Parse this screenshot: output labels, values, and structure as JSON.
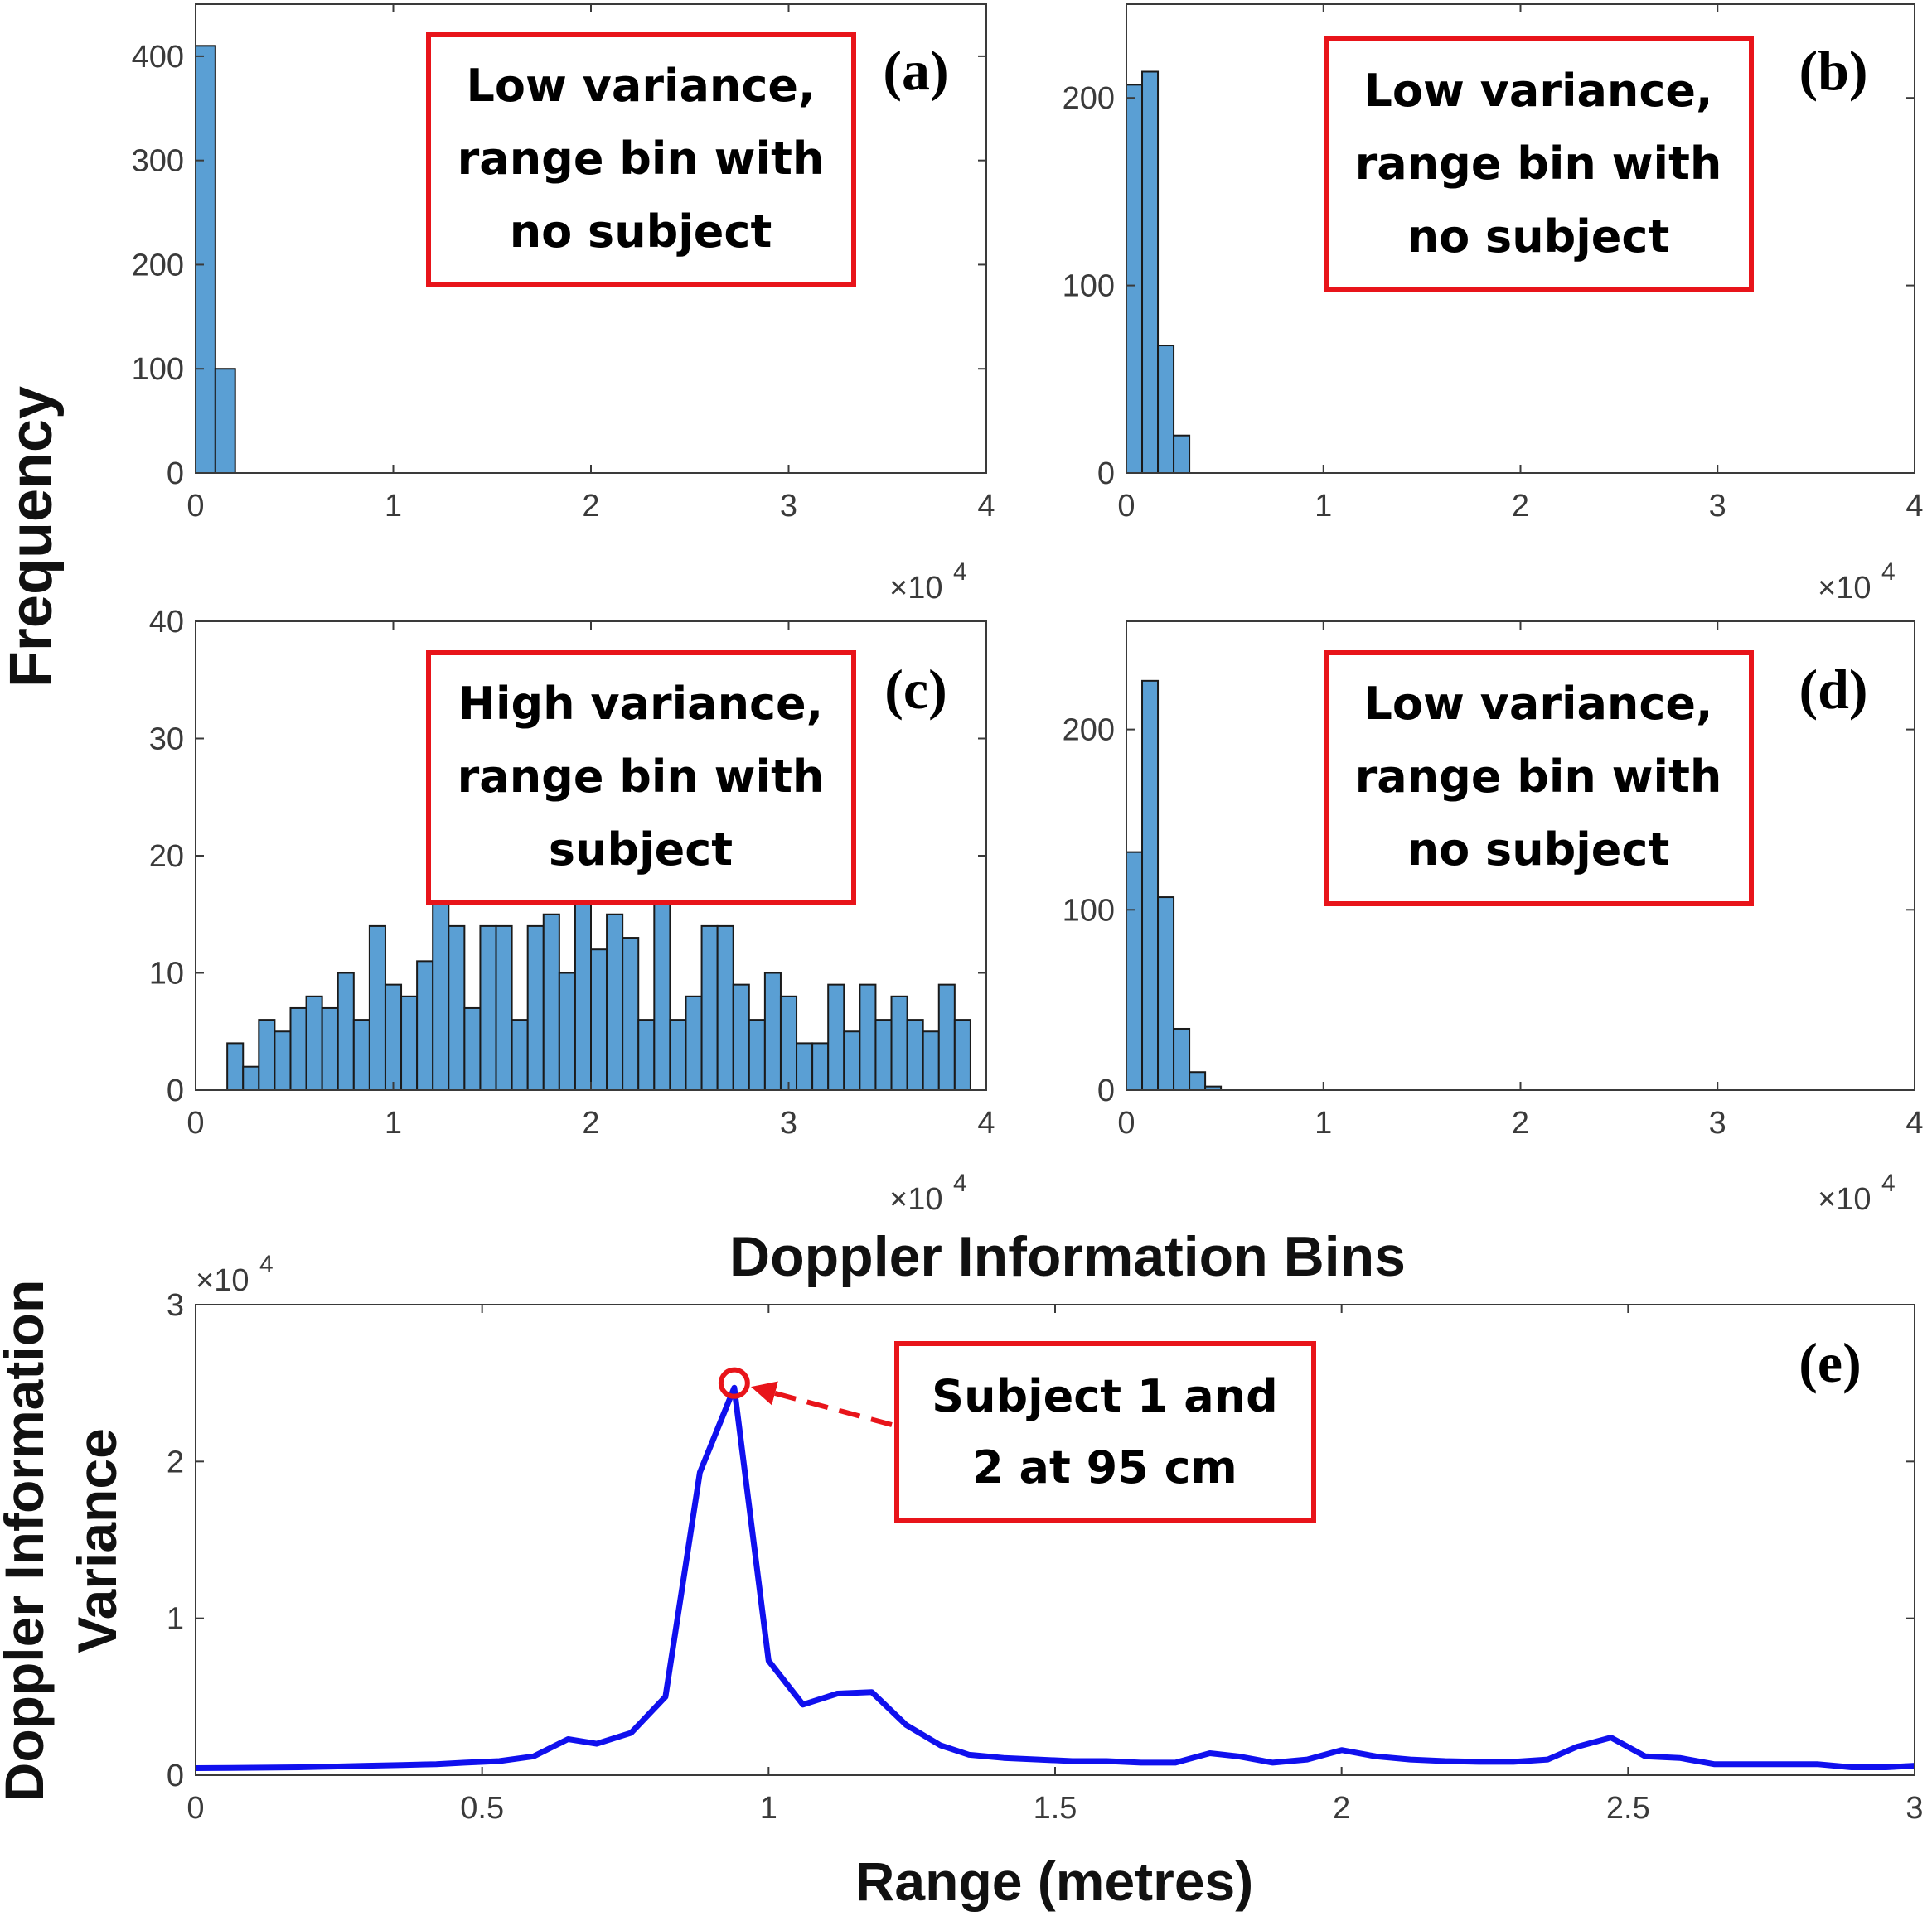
{
  "colors": {
    "bar_fill": "#5a9fd4",
    "bar_edge": "#1a1a1a",
    "line": "#1010ee",
    "annotation": "#e8141a",
    "axis": "#3a3a3a"
  },
  "shared_labels": {
    "frequency_label": "Frequency",
    "doppler_bins_label": "Doppler Information Bins"
  },
  "chart_data": [
    {
      "id": "a",
      "type": "bar",
      "panel_label": "(a)",
      "annotation": [
        "Low variance,",
        "range bin with",
        "no subject"
      ],
      "xlim": [
        0,
        4
      ],
      "ylim": [
        0,
        450
      ],
      "x_scale_base": "×10",
      "x_scale_exp": "4",
      "xticks": [
        "0",
        "1",
        "2",
        "3",
        "4"
      ],
      "yticks": [
        "0",
        "100",
        "200",
        "300",
        "400"
      ],
      "ytick_values": [
        0,
        100,
        200,
        300,
        400
      ],
      "bin_width": 0.1,
      "bin_start": 0,
      "counts": [
        410,
        100
      ]
    },
    {
      "id": "b",
      "type": "bar",
      "panel_label": "(b)",
      "annotation": [
        "Low variance,",
        "range bin with",
        "no subject"
      ],
      "xlim": [
        0,
        4
      ],
      "ylim": [
        0,
        250
      ],
      "x_scale_base": "×10",
      "x_scale_exp": "4",
      "xticks": [
        "0",
        "1",
        "2",
        "3",
        "4"
      ],
      "yticks": [
        "0",
        "100",
        "200"
      ],
      "ytick_values": [
        0,
        100,
        200
      ],
      "bin_width": 0.08,
      "bin_start": 0,
      "counts": [
        207,
        214,
        68,
        20
      ]
    },
    {
      "id": "c",
      "type": "bar",
      "panel_label": "(c)",
      "annotation": [
        "High variance,",
        "range bin with",
        "subject"
      ],
      "xlim": [
        0,
        4
      ],
      "ylim": [
        0,
        40
      ],
      "x_scale_base": "×10",
      "x_scale_exp": "4",
      "xticks": [
        "0",
        "1",
        "2",
        "3",
        "4"
      ],
      "yticks": [
        "0",
        "10",
        "20",
        "30",
        "40"
      ],
      "ytick_values": [
        0,
        10,
        20,
        30,
        40
      ],
      "bin_width": 0.08,
      "bin_start": 0.16,
      "counts": [
        4,
        2,
        6,
        5,
        7,
        8,
        7,
        10,
        6,
        14,
        9,
        8,
        11,
        17,
        14,
        7,
        14,
        14,
        6,
        14,
        15,
        10,
        17,
        12,
        15,
        13,
        6,
        17,
        6,
        8,
        14,
        14,
        9,
        6,
        10,
        8,
        4,
        4,
        9,
        5,
        9,
        6,
        8,
        6,
        5,
        9,
        6
      ]
    },
    {
      "id": "d",
      "type": "bar",
      "panel_label": "(d)",
      "annotation": [
        "Low variance,",
        "range bin with",
        "no subject"
      ],
      "xlim": [
        0,
        4
      ],
      "ylim": [
        0,
        260
      ],
      "x_scale_base": "×10",
      "x_scale_exp": "4",
      "xticks": [
        "0",
        "1",
        "2",
        "3",
        "4"
      ],
      "yticks": [
        "0",
        "100",
        "200"
      ],
      "ytick_values": [
        0,
        100,
        200
      ],
      "bin_width": 0.08,
      "bin_start": 0,
      "counts": [
        132,
        227,
        107,
        34,
        10,
        2
      ]
    },
    {
      "id": "e",
      "type": "line",
      "panel_label": "(e)",
      "annotation": [
        "Subject 1 and",
        "2 at 95 cm"
      ],
      "xlabel": "Range (metres)",
      "ylabel": [
        "Doppler Information",
        "Variance"
      ],
      "xlim": [
        0,
        3
      ],
      "ylim": [
        0,
        3
      ],
      "y_scale_base": "×10",
      "y_scale_exp": "4",
      "xticks": [
        "0",
        "0.5",
        "1",
        "1.5",
        "2",
        "2.5",
        "3"
      ],
      "xtick_values": [
        0,
        0.5,
        1,
        1.5,
        2,
        2.5,
        3
      ],
      "yticks": [
        "0",
        "1",
        "2",
        "3"
      ],
      "ytick_values": [
        0,
        1,
        2,
        3
      ],
      "highlight": {
        "x": 0.94,
        "y": 2.5
      },
      "x": [
        0,
        0.06,
        0.12,
        0.18,
        0.24,
        0.3,
        0.36,
        0.42,
        0.47,
        0.53,
        0.59,
        0.65,
        0.7,
        0.76,
        0.82,
        0.88,
        0.94,
        1.0,
        1.06,
        1.12,
        1.18,
        1.24,
        1.3,
        1.35,
        1.41,
        1.47,
        1.53,
        1.59,
        1.65,
        1.71,
        1.77,
        1.82,
        1.88,
        1.94,
        2.0,
        2.06,
        2.12,
        2.18,
        2.24,
        2.3,
        2.36,
        2.41,
        2.47,
        2.53,
        2.59,
        2.65,
        2.71,
        2.77,
        2.83,
        2.89,
        2.95,
        3.0
      ],
      "y": [
        0.045,
        0.046,
        0.048,
        0.05,
        0.055,
        0.06,
        0.065,
        0.07,
        0.08,
        0.09,
        0.12,
        0.23,
        0.2,
        0.27,
        0.5,
        1.93,
        2.47,
        0.73,
        0.45,
        0.52,
        0.53,
        0.32,
        0.19,
        0.13,
        0.11,
        0.1,
        0.09,
        0.09,
        0.08,
        0.08,
        0.14,
        0.12,
        0.08,
        0.1,
        0.16,
        0.12,
        0.1,
        0.09,
        0.085,
        0.085,
        0.1,
        0.18,
        0.24,
        0.12,
        0.11,
        0.07,
        0.07,
        0.07,
        0.07,
        0.05,
        0.05,
        0.06
      ]
    }
  ]
}
